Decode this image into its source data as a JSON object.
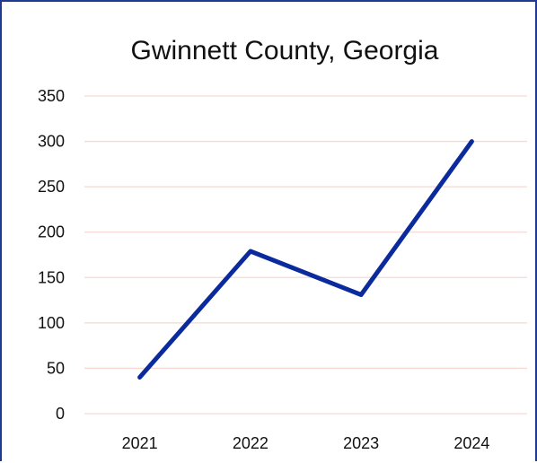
{
  "colors": {
    "line": "#0b2a9c",
    "gridline": "#f6d9d2",
    "border": "#1f3a93"
  },
  "chart_data": {
    "type": "line",
    "title": "Gwinnett County, Georgia",
    "xlabel": "",
    "ylabel": "",
    "categories": [
      "2021",
      "2022",
      "2023",
      "2024"
    ],
    "series": [
      {
        "values": [
          40,
          179,
          131,
          300
        ]
      }
    ],
    "ylim": [
      0,
      350
    ],
    "yticks": [
      0,
      50,
      100,
      150,
      200,
      250,
      300,
      350
    ],
    "grid": true,
    "legend": "none"
  }
}
